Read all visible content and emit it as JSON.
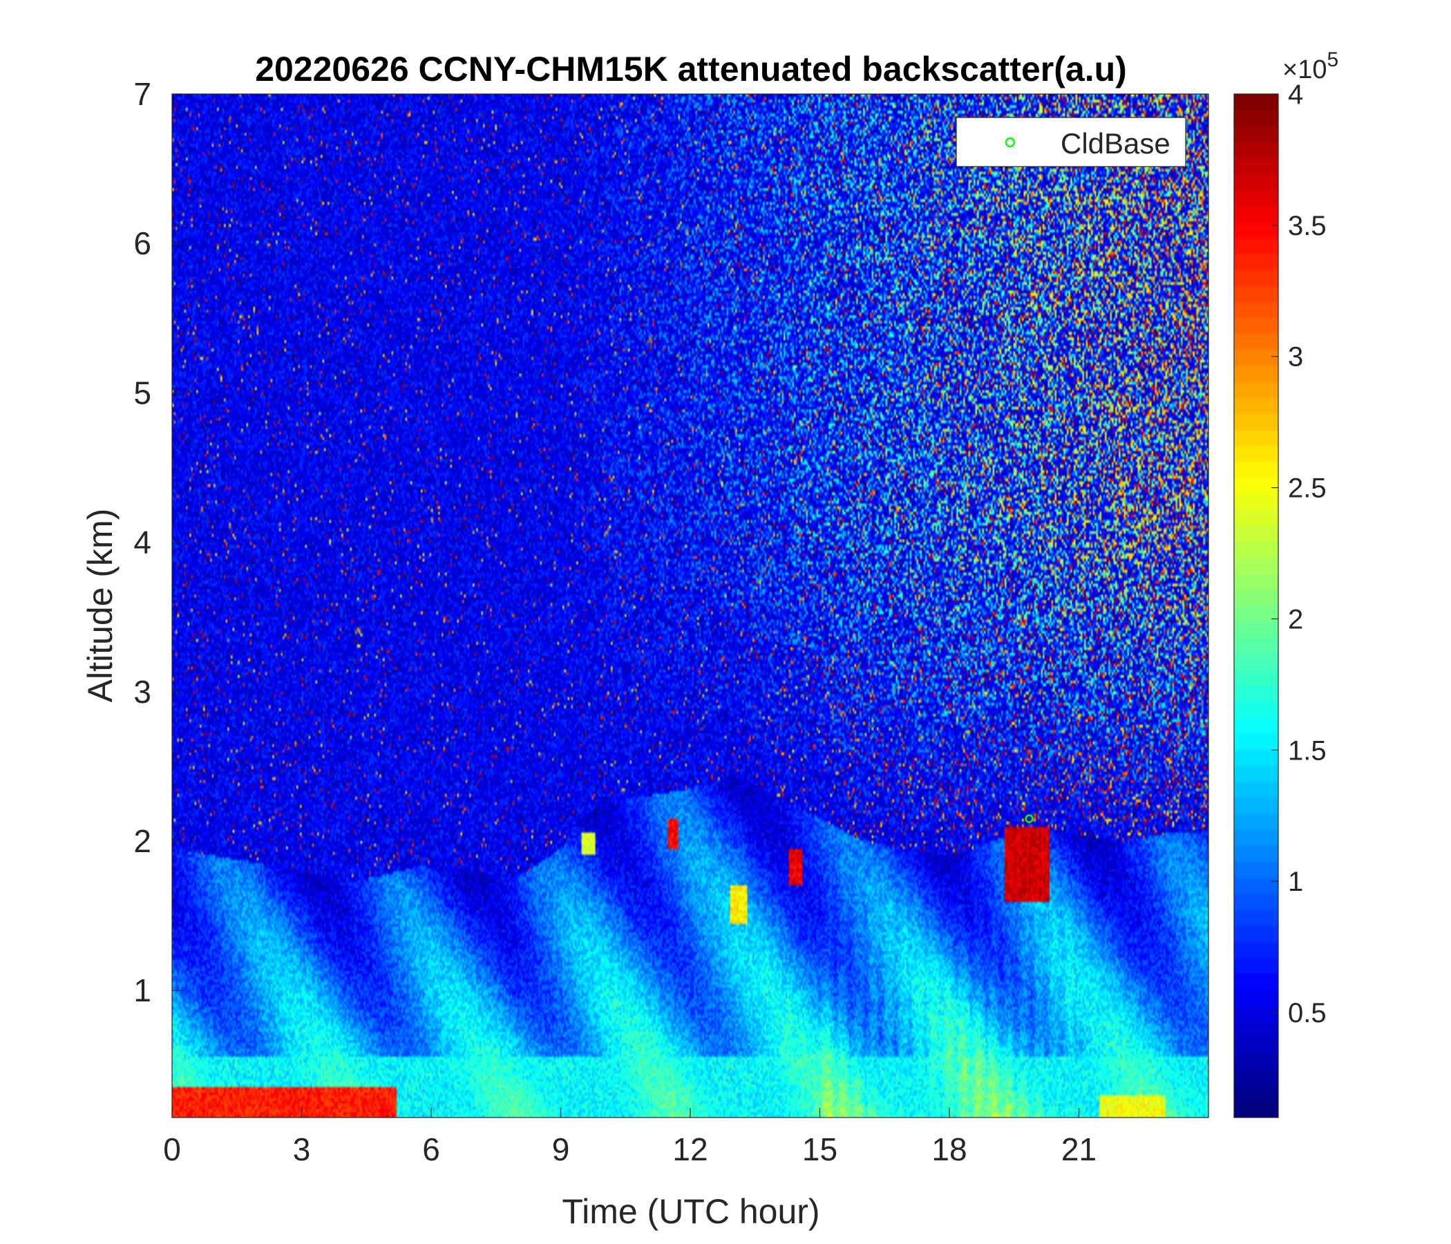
{
  "chart_data": {
    "type": "heatmap",
    "title": "20220626 CCNY-CHM15K attenuated backscatter(a.u)",
    "xlabel": "Time (UTC hour)",
    "ylabel": "Altitude (km)",
    "xlim": [
      0,
      24
    ],
    "ylim": [
      0.15,
      7
    ],
    "x_ticks": [
      0,
      3,
      6,
      9,
      12,
      15,
      18,
      21
    ],
    "y_ticks": [
      1,
      2,
      3,
      4,
      5,
      6,
      7
    ],
    "colorbar": {
      "colormap": "jet",
      "multiplier_label": "×10",
      "multiplier_exponent": "5",
      "range": [
        0.1,
        4
      ],
      "ticks": [
        0.5,
        1,
        1.5,
        2,
        2.5,
        3,
        3.5,
        4
      ],
      "tick_labels": [
        "0.5",
        "1",
        "1.5",
        "2",
        "2.5",
        "3",
        "3.5",
        "4"
      ]
    },
    "legend": {
      "location": "top-right",
      "entries": [
        {
          "label": "CldBase",
          "marker": "circle",
          "color": "#00ff00"
        }
      ]
    },
    "boundary_layer_top_km": {
      "x": [
        0,
        1,
        2,
        3,
        4,
        5,
        6,
        7,
        8,
        9,
        10,
        11,
        12,
        13,
        14,
        15,
        16,
        17,
        18,
        19,
        20,
        21,
        22,
        23,
        24
      ],
      "y": [
        1.95,
        1.9,
        1.85,
        1.8,
        1.72,
        1.78,
        1.85,
        1.8,
        1.75,
        1.95,
        2.3,
        2.3,
        2.35,
        2.45,
        2.3,
        2.15,
        2.0,
        1.95,
        1.9,
        2.0,
        2.1,
        2.05,
        2.0,
        2.05,
        2.05
      ]
    },
    "high_signal_layers": [
      {
        "x": [
          0,
          5.2
        ],
        "y": [
          0.15,
          0.35
        ],
        "value": 3.6
      },
      {
        "x": [
          9.5,
          9.8
        ],
        "y": [
          1.9,
          2.05
        ],
        "value": 2.6
      },
      {
        "x": [
          11.5,
          11.7
        ],
        "y": [
          1.95,
          2.15
        ],
        "value": 3.7
      },
      {
        "x": [
          12.9,
          13.3
        ],
        "y": [
          1.45,
          1.7
        ],
        "value": 2.8
      },
      {
        "x": [
          14.3,
          14.6
        ],
        "y": [
          1.7,
          1.95
        ],
        "value": 3.8
      },
      {
        "x": [
          19.3,
          20.3
        ],
        "y": [
          1.6,
          2.1
        ],
        "value": 3.9
      },
      {
        "x": [
          21.5,
          23.0
        ],
        "y": [
          0.15,
          0.3
        ],
        "value": 2.7
      }
    ],
    "cloud_base": [
      {
        "x": 19.85,
        "y": 2.15
      }
    ]
  }
}
